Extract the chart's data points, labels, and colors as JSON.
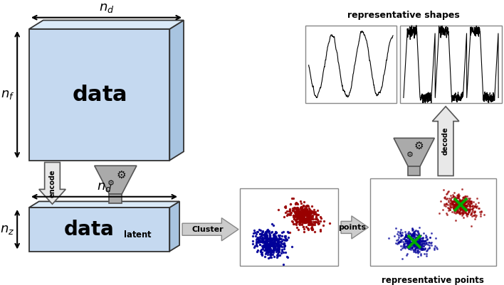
{
  "bg_color": "#ffffff",
  "box_face_color": "#c5d9f0",
  "box_side_color": "#a8c4e0",
  "box_top_color": "#daeaf8",
  "box_edge_color": "#333333",
  "funnel_color": "#aaaaaa",
  "funnel_edge": "#555555",
  "encode_arrow_fill": "#dddddd",
  "encode_arrow_edge": "#555555",
  "cluster1_color": "#990000",
  "cluster2_color": "#000099",
  "green_x_color": "#00aa00",
  "rep_shapes_title": "representative shapes",
  "rep_points_label": "representative points",
  "cluster_label": "Cluster",
  "points_label": "points",
  "encode_label": "encode",
  "decode_label": "decode"
}
